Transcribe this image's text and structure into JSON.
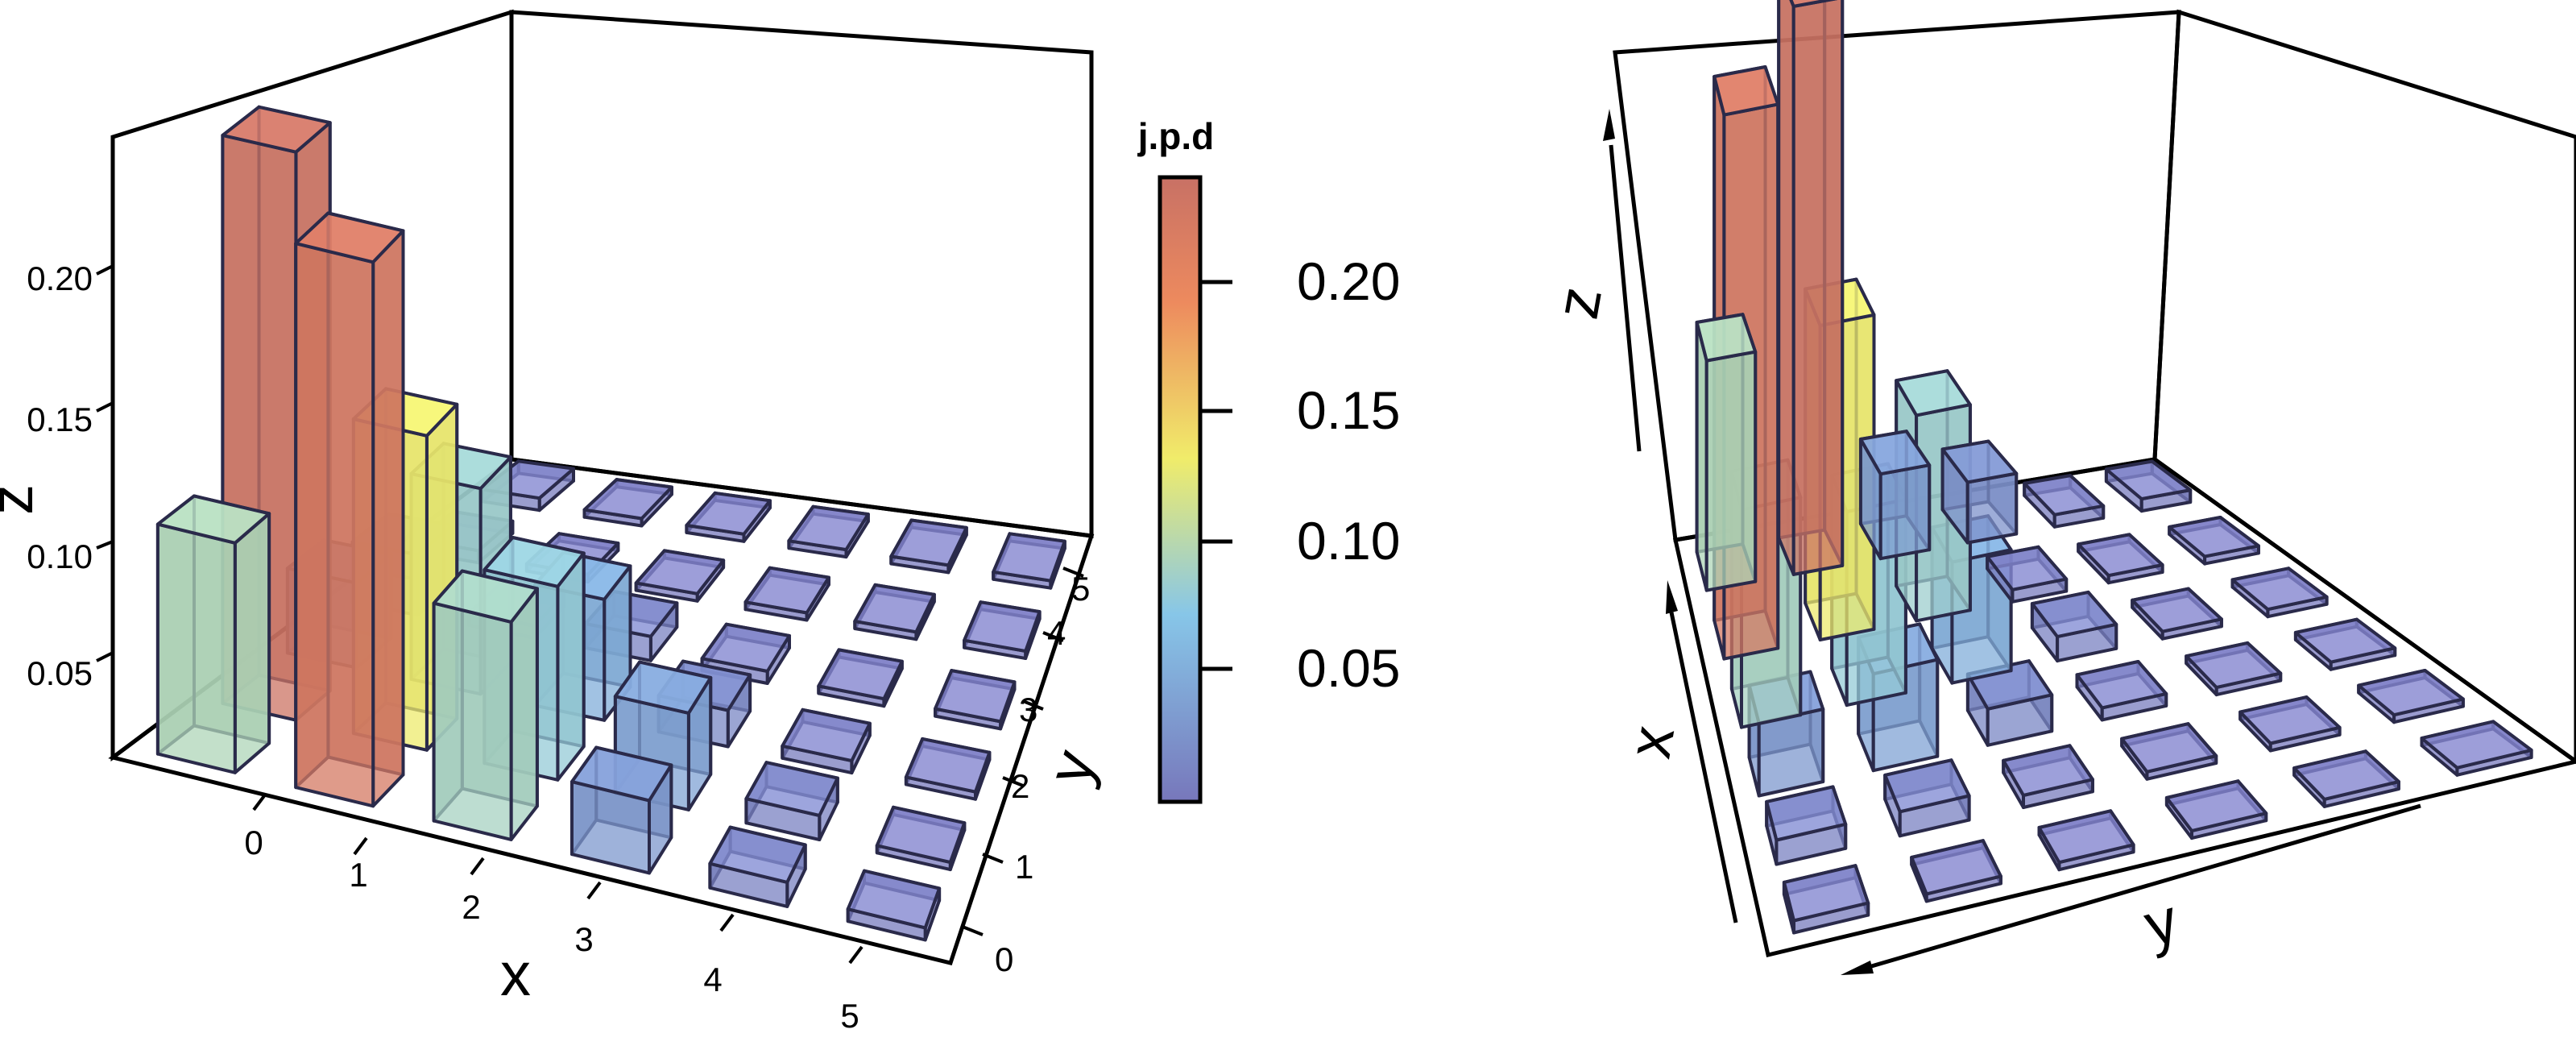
{
  "chart_data": [
    {
      "type": "bar3d",
      "view": "front-left",
      "xlabel": "x",
      "ylabel": "y",
      "zlabel": "z",
      "x_ticks": [
        "0",
        "1",
        "2",
        "3",
        "4",
        "5"
      ],
      "y_ticks": [
        "0",
        "1",
        "2",
        "3",
        "4",
        "5"
      ],
      "z_ticks": [
        "0.05",
        "0.10",
        "0.15",
        "0.20"
      ],
      "zlim": [
        0,
        0.24
      ],
      "grid": "box",
      "values": [
        [
          0.095,
          0.235,
          0.035,
          0.025,
          0.005,
          0.005
        ],
        [
          0.225,
          0.13,
          0.085,
          0.005,
          0.003,
          0.003
        ],
        [
          0.09,
          0.08,
          0.05,
          0.01,
          0.003,
          0.003
        ],
        [
          0.03,
          0.04,
          0.015,
          0.005,
          0.003,
          0.003
        ],
        [
          0.01,
          0.01,
          0.005,
          0.003,
          0.003,
          0.003
        ],
        [
          0.005,
          0.003,
          0.003,
          0.003,
          0.003,
          0.003
        ]
      ]
    },
    {
      "type": "bar3d",
      "view": "front-right",
      "xlabel": "x",
      "ylabel": "y",
      "zlabel": "z",
      "axis_ticks_shown": false,
      "grid": "box",
      "values_same_as": 0
    }
  ],
  "colorbar": {
    "title": "j.p.d",
    "ticks": [
      "0.05",
      "0.10",
      "0.15",
      "0.20"
    ],
    "range": [
      0,
      0.24
    ],
    "stops": [
      "#7777bb",
      "#87c6e8",
      "#f0ec6a",
      "#ed8a5e",
      "#c87165"
    ]
  }
}
